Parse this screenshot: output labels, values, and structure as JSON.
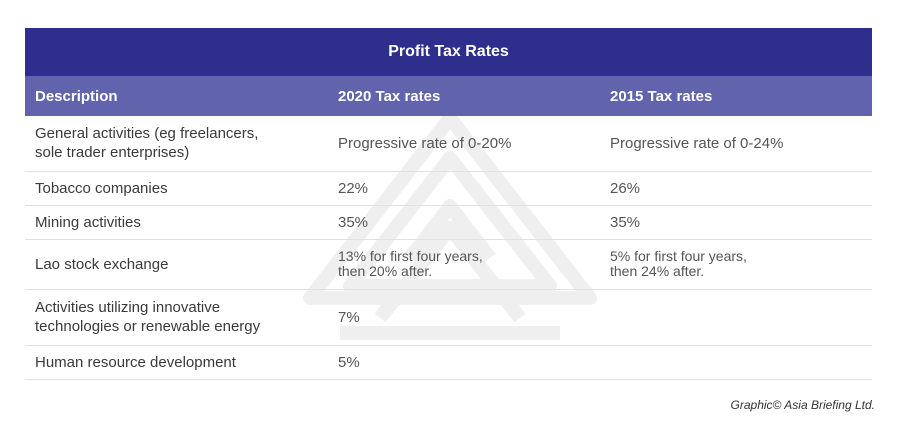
{
  "table": {
    "title": "Profit Tax Rates",
    "headers": {
      "description": "Description",
      "rate_2020": "2020 Tax rates",
      "rate_2015": "2015 Tax rates"
    },
    "rows": [
      {
        "description": [
          "General activities (eg freelancers,",
          "sole trader enterprises)"
        ],
        "rate_2020": [
          "Progressive rate of 0-20%"
        ],
        "rate_2015": [
          "Progressive rate of 0-24%"
        ]
      },
      {
        "description": [
          "Tobacco companies"
        ],
        "rate_2020": [
          "22%"
        ],
        "rate_2015": [
          "26%"
        ]
      },
      {
        "description": [
          "Mining activities"
        ],
        "rate_2020": [
          "35%"
        ],
        "rate_2015": [
          "35%"
        ]
      },
      {
        "description": [
          "Lao stock exchange"
        ],
        "rate_2020": [
          "13% for first four years,",
          "then 20% after."
        ],
        "rate_2015": [
          "5% for first four years,",
          "then 24% after."
        ]
      },
      {
        "description": [
          "Activities utilizing innovative",
          "technologies or renewable energy"
        ],
        "rate_2020": [
          "7%"
        ],
        "rate_2015": []
      },
      {
        "description": [
          "Human resource development"
        ],
        "rate_2020": [
          "5%"
        ],
        "rate_2015": []
      }
    ]
  },
  "credit": "Graphic© Asia Briefing Ltd.",
  "colors": {
    "title_bg": "#2e2f8c",
    "header_bg": "#6163ad",
    "row_border": "#e1e1e1"
  }
}
